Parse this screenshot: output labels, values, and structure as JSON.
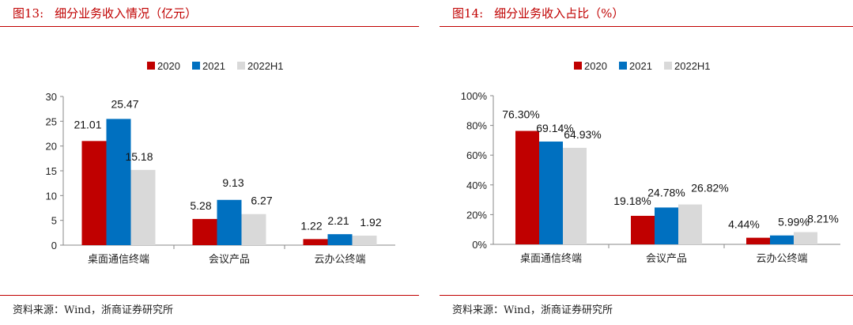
{
  "colors": {
    "accent": "#c00000",
    "s2020": "#c00000",
    "s2021": "#0070c0",
    "s2022h1": "#d9d9d9"
  },
  "left": {
    "fig_num": "图13:",
    "fig_title": "细分业务收入情况（亿元）",
    "source": "资料来源：Wind，浙商证券研究所"
  },
  "right": {
    "fig_num": "图14:",
    "fig_title": "细分业务收入占比（%）",
    "source": "资料来源：Wind，浙商证券研究所"
  },
  "chart_data": [
    {
      "type": "bar",
      "title": "细分业务收入情况（亿元）",
      "categories": [
        "桌面通信终端",
        "会议产品",
        "云办公终端"
      ],
      "series": [
        {
          "name": "2020",
          "values": [
            21.01,
            5.28,
            1.22
          ],
          "labels": [
            "21.01",
            "5.28",
            "1.22"
          ]
        },
        {
          "name": "2021",
          "values": [
            25.47,
            9.13,
            2.21
          ],
          "labels": [
            "25.47",
            "9.13",
            "2.21"
          ]
        },
        {
          "name": "2022H1",
          "values": [
            15.18,
            6.27,
            1.92
          ],
          "labels": [
            "15.18",
            "6.27",
            "1.92"
          ]
        }
      ],
      "ylim": [
        0,
        30
      ],
      "yticks": [
        0,
        5,
        10,
        15,
        20,
        25,
        30
      ],
      "ytick_labels": [
        "0",
        "5",
        "10",
        "15",
        "20",
        "25",
        "30"
      ],
      "legend": "top-center",
      "grid": false
    },
    {
      "type": "bar",
      "title": "细分业务收入占比（%）",
      "categories": [
        "桌面通信终端",
        "会议产品",
        "云办公终端"
      ],
      "series": [
        {
          "name": "2020",
          "values": [
            76.3,
            19.18,
            4.44
          ],
          "labels": [
            "76.30%",
            "19.18%",
            "4.44%"
          ]
        },
        {
          "name": "2021",
          "values": [
            69.14,
            24.78,
            5.99
          ],
          "labels": [
            "69.14%",
            "24.78%",
            "5.99%"
          ]
        },
        {
          "name": "2022H1",
          "values": [
            64.93,
            26.82,
            8.21
          ],
          "labels": [
            "64.93%",
            "26.82%",
            "8.21%"
          ]
        }
      ],
      "ylim": [
        0,
        100
      ],
      "yticks": [
        0,
        20,
        40,
        60,
        80,
        100
      ],
      "ytick_labels": [
        "0%",
        "20%",
        "40%",
        "60%",
        "80%",
        "100%"
      ],
      "legend": "top-center",
      "grid": false
    }
  ]
}
